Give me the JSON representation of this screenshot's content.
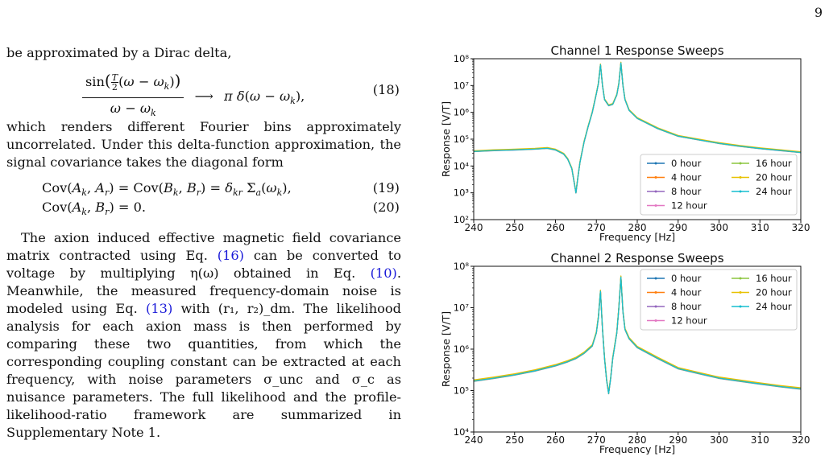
{
  "page_number": "9",
  "text": {
    "intro": "be approximated by a Dirac delta,",
    "eq18_num": "(18)",
    "after18": "which renders different Fourier bins approximately uncorrelated. Under this delta-function approximation, the signal covariance takes the diagonal form",
    "eq19_num": "(19)",
    "eq20_num": "(20)",
    "para_a": "The axion induced effective magnetic field covariance matrix contracted using Eq. ",
    "ref16": "(16)",
    "para_b": " can be converted to voltage by multiplying η(ω) obtained in Eq. ",
    "ref10": "(10)",
    "para_c": ". Meanwhile, the measured frequency-domain noise is modeled using Eq. ",
    "ref13": "(13)",
    "para_d": " with (r₁, r₂)_dm. The likelihood analysis for each axion mass is then performed by comparing these two quantities, from which the corresponding coupling constant can be extracted at each frequency, with noise parameters σ_unc and σ_c as nuisance parameters. The full likelihood and the profile-likelihood-ratio framework are summarized in Supplementary Note 1."
  },
  "colors": {
    "0 hour": "#1f77b4",
    "4 hour": "#ff7f0e",
    "8 hour": "#9467bd",
    "12 hour": "#e377c2",
    "16 hour": "#8cc63f",
    "20 hour": "#e8c100",
    "24 hour": "#17becf"
  },
  "chart_data": [
    {
      "type": "line",
      "title": "Channel 1 Response Sweeps",
      "xlabel": "Frequency [Hz]",
      "ylabel": "Response [V/T]",
      "xlim": [
        240,
        320
      ],
      "ylim": [
        100,
        100000000
      ],
      "yscale": "log",
      "xticks": [
        "240",
        "250",
        "260",
        "270",
        "280",
        "290",
        "300",
        "310",
        "320"
      ],
      "yticks": [
        "10²",
        "10³",
        "10⁴",
        "10⁵",
        "10⁶",
        "10⁷",
        "10⁸"
      ],
      "legend": "lower right",
      "series_names": [
        "0 hour",
        "4 hour",
        "8 hour",
        "12 hour",
        "16 hour",
        "20 hour",
        "24 hour"
      ],
      "x": [
        240,
        245,
        250,
        255,
        258,
        260,
        262,
        263,
        264,
        265,
        265.5,
        266,
        267,
        268,
        269,
        270,
        270.5,
        271,
        271.5,
        272,
        273,
        274,
        275,
        275.5,
        276,
        276.5,
        277,
        278,
        280,
        285,
        290,
        295,
        300,
        305,
        310,
        315,
        320
      ],
      "y": [
        35000,
        38000,
        40000,
        43000,
        46000,
        40000,
        28000,
        18000,
        8000,
        1000,
        4000,
        14000,
        80000,
        300000,
        1000000,
        5000000,
        12000000,
        60000000,
        10000000,
        3000000,
        1800000,
        2000000,
        4500000,
        12000000,
        70000000,
        10000000,
        3000000,
        1200000,
        600000,
        250000,
        130000,
        95000,
        70000,
        55000,
        45000,
        38000,
        32000
      ]
    },
    {
      "type": "line",
      "title": "Channel 2 Response Sweeps",
      "xlabel": "Frequency [Hz]",
      "ylabel": "Response [V/T]",
      "xlim": [
        240,
        320
      ],
      "ylim": [
        10000,
        100000000
      ],
      "yscale": "log",
      "xticks": [
        "240",
        "250",
        "260",
        "270",
        "280",
        "290",
        "300",
        "310",
        "320"
      ],
      "yticks": [
        "10⁴",
        "10⁵",
        "10⁶",
        "10⁷",
        "10⁸"
      ],
      "legend": "upper right",
      "series_names": [
        "0 hour",
        "4 hour",
        "8 hour",
        "12 hour",
        "16 hour",
        "20 hour",
        "24 hour"
      ],
      "x": [
        240,
        245,
        250,
        255,
        260,
        263,
        265,
        267,
        269,
        270,
        270.5,
        271,
        271.5,
        272,
        272.5,
        273,
        273.5,
        274,
        275,
        275.5,
        276,
        276.5,
        277,
        278,
        280,
        285,
        290,
        295,
        300,
        305,
        310,
        315,
        320
      ],
      "y": [
        170000,
        200000,
        240000,
        300000,
        400000,
        500000,
        600000,
        800000,
        1200000,
        2500000,
        6000000,
        25000000,
        3000000,
        600000,
        180000,
        85000,
        200000,
        600000,
        2500000,
        10000000,
        55000000,
        8000000,
        3000000,
        1800000,
        1100000,
        600000,
        340000,
        260000,
        200000,
        170000,
        145000,
        125000,
        110000
      ]
    }
  ]
}
